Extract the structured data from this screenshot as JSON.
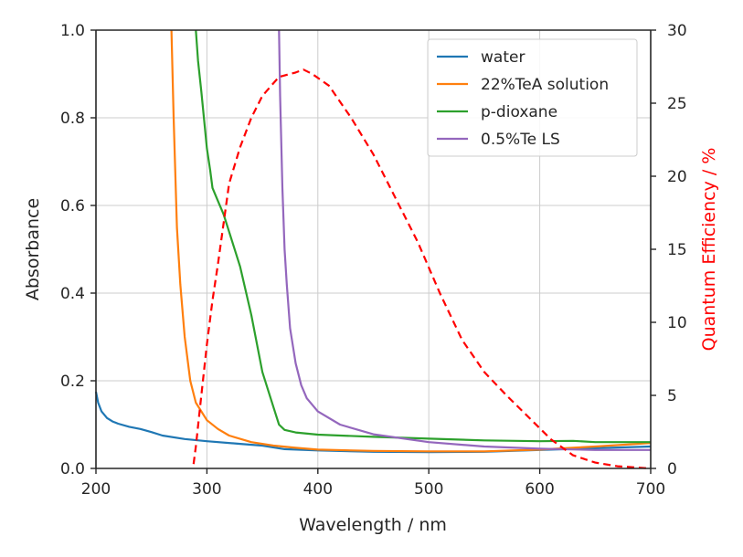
{
  "chart_data": {
    "type": "line",
    "title": "",
    "xlabel": "Wavelength / nm",
    "ylabel": "Absorbance",
    "y2label": "Quantum Efficiency / %",
    "xlim": [
      200,
      700
    ],
    "ylim": [
      0,
      1.0
    ],
    "y2lim": [
      0,
      30
    ],
    "xticks": [
      200,
      300,
      400,
      500,
      600,
      700
    ],
    "yticks": [
      0.0,
      0.2,
      0.4,
      0.6,
      0.8,
      1.0
    ],
    "y2ticks": [
      0,
      5,
      10,
      15,
      20,
      25,
      30
    ],
    "xtick_labels": [
      "200",
      "300",
      "400",
      "500",
      "600",
      "700"
    ],
    "ytick_labels": [
      "0.0",
      "0.2",
      "0.4",
      "0.6",
      "0.8",
      "1.0"
    ],
    "y2tick_labels": [
      "0",
      "5",
      "10",
      "15",
      "20",
      "25",
      "30"
    ],
    "grid": true,
    "legend_position": "top-right",
    "series": [
      {
        "name": "water",
        "axis": "left",
        "color": "#1f77b4",
        "style": "solid",
        "x": [
          200,
          202,
          205,
          210,
          215,
          220,
          230,
          240,
          250,
          260,
          280,
          300,
          330,
          350,
          370,
          400,
          450,
          500,
          550,
          600,
          650,
          700
        ],
        "y": [
          0.175,
          0.15,
          0.13,
          0.115,
          0.107,
          0.102,
          0.095,
          0.09,
          0.083,
          0.075,
          0.067,
          0.062,
          0.056,
          0.052,
          0.044,
          0.041,
          0.038,
          0.037,
          0.038,
          0.042,
          0.046,
          0.05
        ]
      },
      {
        "name": "22%TeA solution",
        "axis": "left",
        "color": "#ff7f0e",
        "style": "solid",
        "x": [
          268,
          270,
          273,
          276,
          280,
          285,
          290,
          300,
          310,
          320,
          340,
          360,
          380,
          400,
          450,
          500,
          550,
          600,
          650,
          700
        ],
        "y": [
          1.0,
          0.8,
          0.55,
          0.42,
          0.3,
          0.2,
          0.15,
          0.11,
          0.09,
          0.075,
          0.06,
          0.052,
          0.047,
          0.043,
          0.04,
          0.039,
          0.039,
          0.043,
          0.05,
          0.058
        ]
      },
      {
        "name": "p-dioxane",
        "axis": "left",
        "color": "#2ca02c",
        "style": "solid",
        "x": [
          290,
          292,
          295,
          300,
          303,
          305,
          310,
          315,
          320,
          330,
          340,
          350,
          360,
          365,
          370,
          380,
          400,
          450,
          500,
          550,
          600,
          630,
          650,
          700
        ],
        "y": [
          1.0,
          0.93,
          0.86,
          0.73,
          0.68,
          0.64,
          0.61,
          0.58,
          0.54,
          0.46,
          0.35,
          0.22,
          0.14,
          0.1,
          0.088,
          0.082,
          0.077,
          0.072,
          0.068,
          0.064,
          0.062,
          0.063,
          0.06,
          0.06
        ]
      },
      {
        "name": "0.5%Te LS",
        "axis": "left",
        "color": "#9467bd",
        "style": "solid",
        "x": [
          365,
          366,
          368,
          370,
          372,
          375,
          380,
          385,
          390,
          400,
          420,
          450,
          500,
          550,
          600,
          650,
          700
        ],
        "y": [
          1.0,
          0.85,
          0.64,
          0.5,
          0.42,
          0.32,
          0.24,
          0.19,
          0.16,
          0.13,
          0.1,
          0.078,
          0.06,
          0.05,
          0.045,
          0.042,
          0.042
        ]
      },
      {
        "name": "Quantum Efficiency",
        "axis": "right",
        "color": "#ff0000",
        "style": "dashed",
        "x": [
          288,
          290,
          295,
          300,
          305,
          310,
          320,
          330,
          340,
          350,
          365,
          380,
          387,
          395,
          410,
          430,
          450,
          470,
          490,
          510,
          530,
          550,
          570,
          590,
          610,
          630,
          650,
          670,
          690,
          700
        ],
        "y": [
          0.3,
          1.5,
          5,
          8.5,
          11.5,
          14,
          19.5,
          22,
          24,
          25.5,
          26.8,
          27.1,
          27.3,
          27.0,
          26.2,
          24,
          21.5,
          18.5,
          15.5,
          12,
          8.8,
          6.6,
          5,
          3.5,
          2,
          0.9,
          0.4,
          0.15,
          0.05,
          0
        ]
      }
    ]
  }
}
